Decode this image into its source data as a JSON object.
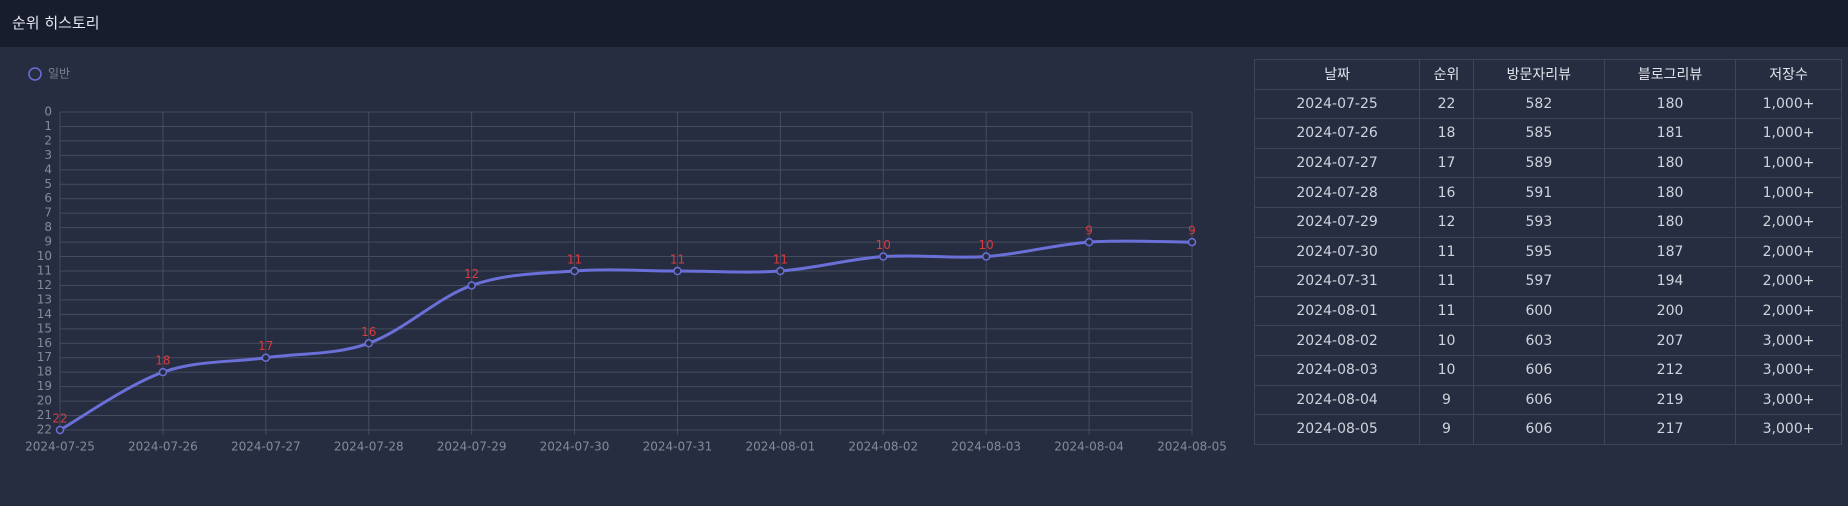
{
  "header": {
    "title": "순위 히스토리"
  },
  "chart_data": {
    "type": "line",
    "categories": [
      "2024-07-25",
      "2024-07-26",
      "2024-07-27",
      "2024-07-28",
      "2024-07-29",
      "2024-07-30",
      "2024-07-31",
      "2024-08-01",
      "2024-08-02",
      "2024-08-03",
      "2024-08-04",
      "2024-08-05"
    ],
    "series": [
      {
        "name": "일반",
        "color": "#6b6fd8",
        "values": [
          22,
          18,
          17,
          16,
          12,
          11,
          11,
          11,
          10,
          10,
          9,
          9
        ]
      }
    ],
    "ylim": [
      0,
      22
    ],
    "yticks": [
      0,
      1,
      2,
      3,
      4,
      5,
      6,
      7,
      8,
      9,
      10,
      11,
      12,
      13,
      14,
      15,
      16,
      17,
      18,
      19,
      20,
      21,
      22
    ],
    "y_reversed": true,
    "grid": true,
    "label_color": "#d93a3f"
  },
  "table": {
    "columns": [
      "날짜",
      "순위",
      "방문자리뷰",
      "블로그리뷰",
      "저장수"
    ],
    "rows": [
      [
        "2024-07-25",
        22,
        582,
        180,
        "1,000+"
      ],
      [
        "2024-07-26",
        18,
        585,
        181,
        "1,000+"
      ],
      [
        "2024-07-27",
        17,
        589,
        180,
        "1,000+"
      ],
      [
        "2024-07-28",
        16,
        591,
        180,
        "1,000+"
      ],
      [
        "2024-07-29",
        12,
        593,
        180,
        "2,000+"
      ],
      [
        "2024-07-30",
        11,
        595,
        187,
        "2,000+"
      ],
      [
        "2024-07-31",
        11,
        597,
        194,
        "2,000+"
      ],
      [
        "2024-08-01",
        11,
        600,
        200,
        "2,000+"
      ],
      [
        "2024-08-02",
        10,
        603,
        207,
        "3,000+"
      ],
      [
        "2024-08-03",
        10,
        606,
        212,
        "3,000+"
      ],
      [
        "2024-08-04",
        9,
        606,
        219,
        "3,000+"
      ],
      [
        "2024-08-05",
        9,
        606,
        217,
        "3,000+"
      ]
    ]
  }
}
